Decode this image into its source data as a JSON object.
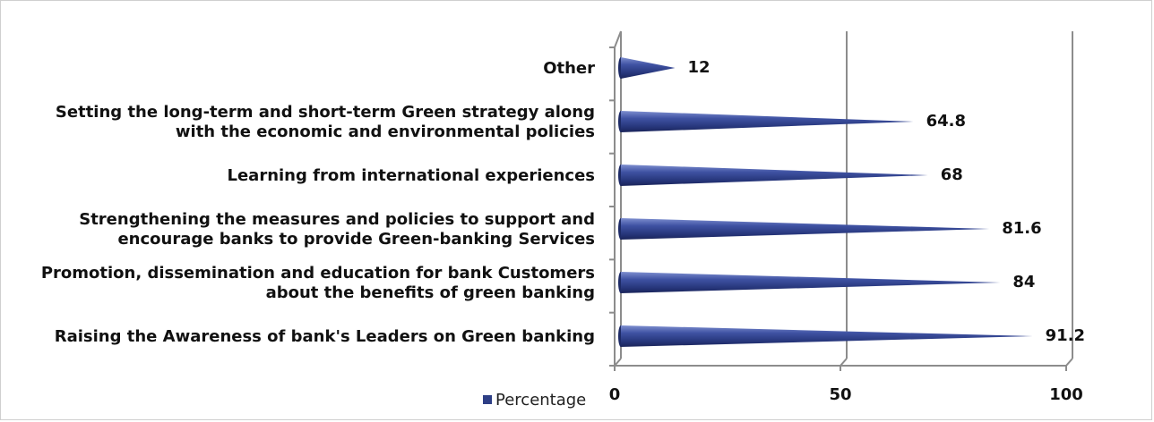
{
  "chart_data": {
    "type": "bar",
    "orientation": "horizontal",
    "bar_shape": "cone",
    "categories": [
      "Raising the Awareness of bank's Leaders on Green banking",
      "Promotion, dissemination and education for bank Customers|about the benefits of green banking",
      "Strengthening the measures and policies to support and|encourage banks to provide Green-banking Services",
      "Learning from international experiences",
      "Setting the long-term and short-term Green strategy along|with the economic and environmental policies",
      "Other"
    ],
    "series": [
      {
        "name": "Percentage",
        "values": [
          91.2,
          84,
          81.6,
          68,
          64.8,
          12
        ],
        "labels": [
          "91.2",
          "84",
          "81.6",
          "68",
          "64.8",
          "12"
        ]
      }
    ],
    "xlim": [
      0,
      100
    ],
    "xticks": [
      "0",
      "50",
      "100"
    ],
    "grid": true,
    "legend_position": "bottom-left",
    "colors": {
      "bar": "#2e3f86",
      "bar_highlight": "#7e8fd0",
      "axis": "#8c8c8c"
    }
  }
}
